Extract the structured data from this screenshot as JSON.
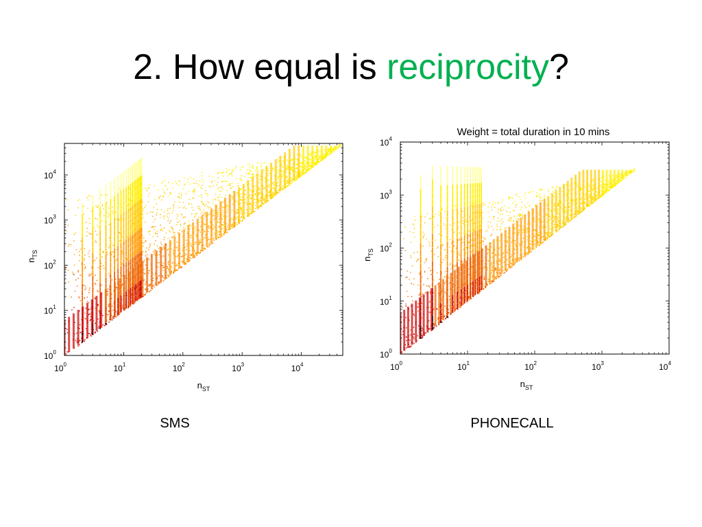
{
  "slide": {
    "title_prefix": "2. How equal is ",
    "title_accent": "reciprocity",
    "title_suffix": "?",
    "accent_color": "#00b050"
  },
  "chart_data": [
    {
      "type": "heatmap",
      "caption": "SMS",
      "title": "",
      "xlabel": "n",
      "xlabel_sub": "ST",
      "ylabel": "n",
      "ylabel_sub": "TS",
      "xscale": "log",
      "yscale": "log",
      "xlim": [
        1,
        50000
      ],
      "ylim": [
        1,
        50000
      ],
      "x_ticks": [
        {
          "base": "10",
          "exp": "0",
          "value": 1
        },
        {
          "base": "10",
          "exp": "1",
          "value": 10
        },
        {
          "base": "10",
          "exp": "2",
          "value": 100
        },
        {
          "base": "10",
          "exp": "3",
          "value": 1000
        },
        {
          "base": "10",
          "exp": "4",
          "value": 10000
        }
      ],
      "y_ticks": [
        {
          "base": "10",
          "exp": "0",
          "value": 1
        },
        {
          "base": "10",
          "exp": "1",
          "value": 10
        },
        {
          "base": "10",
          "exp": "2",
          "value": 100
        },
        {
          "base": "10",
          "exp": "3",
          "value": 1000
        },
        {
          "base": "10",
          "exp": "4",
          "value": 10000
        }
      ],
      "density_region": {
        "x_max": 45000,
        "y_max": 45000,
        "diagonal_lower_bound": "y = x",
        "vertical_streaks_at_x": [
          2,
          3,
          4,
          5,
          6,
          7,
          8,
          9,
          10,
          11,
          12,
          13,
          14,
          15,
          16,
          17,
          18,
          19,
          20
        ]
      },
      "colormap": [
        "#ffff99",
        "#ffee00",
        "#ffcc00",
        "#ff9900",
        "#ee6600",
        "#cc0000",
        "#000000"
      ],
      "grid": false
    },
    {
      "type": "heatmap",
      "caption": "PHONECALL",
      "title": "Weight = total duration in 10 mins",
      "xlabel": "n",
      "xlabel_sub": "ST",
      "ylabel": "n",
      "ylabel_sub": "TS",
      "xscale": "log",
      "yscale": "log",
      "xlim": [
        1,
        10000
      ],
      "ylim": [
        1,
        10000
      ],
      "x_ticks": [
        {
          "base": "10",
          "exp": "0",
          "value": 1
        },
        {
          "base": "10",
          "exp": "1",
          "value": 10
        },
        {
          "base": "10",
          "exp": "2",
          "value": 100
        },
        {
          "base": "10",
          "exp": "3",
          "value": 1000
        },
        {
          "base": "10",
          "exp": "4",
          "value": 10000
        }
      ],
      "y_ticks": [
        {
          "base": "10",
          "exp": "0",
          "value": 1
        },
        {
          "base": "10",
          "exp": "1",
          "value": 10
        },
        {
          "base": "10",
          "exp": "2",
          "value": 100
        },
        {
          "base": "10",
          "exp": "3",
          "value": 1000
        },
        {
          "base": "10",
          "exp": "4",
          "value": 10000
        }
      ],
      "density_region": {
        "x_max": 3000,
        "y_max": 3000,
        "diagonal_lower_bound": "y = x",
        "vertical_streaks_at_x": [
          2,
          3,
          4,
          5,
          6,
          7,
          8,
          9,
          10,
          11,
          12,
          13,
          14,
          15,
          16
        ]
      },
      "colormap": [
        "#ffff99",
        "#ffee00",
        "#ffcc00",
        "#ff9900",
        "#ee6600",
        "#cc0000",
        "#000000"
      ],
      "grid": false
    }
  ]
}
